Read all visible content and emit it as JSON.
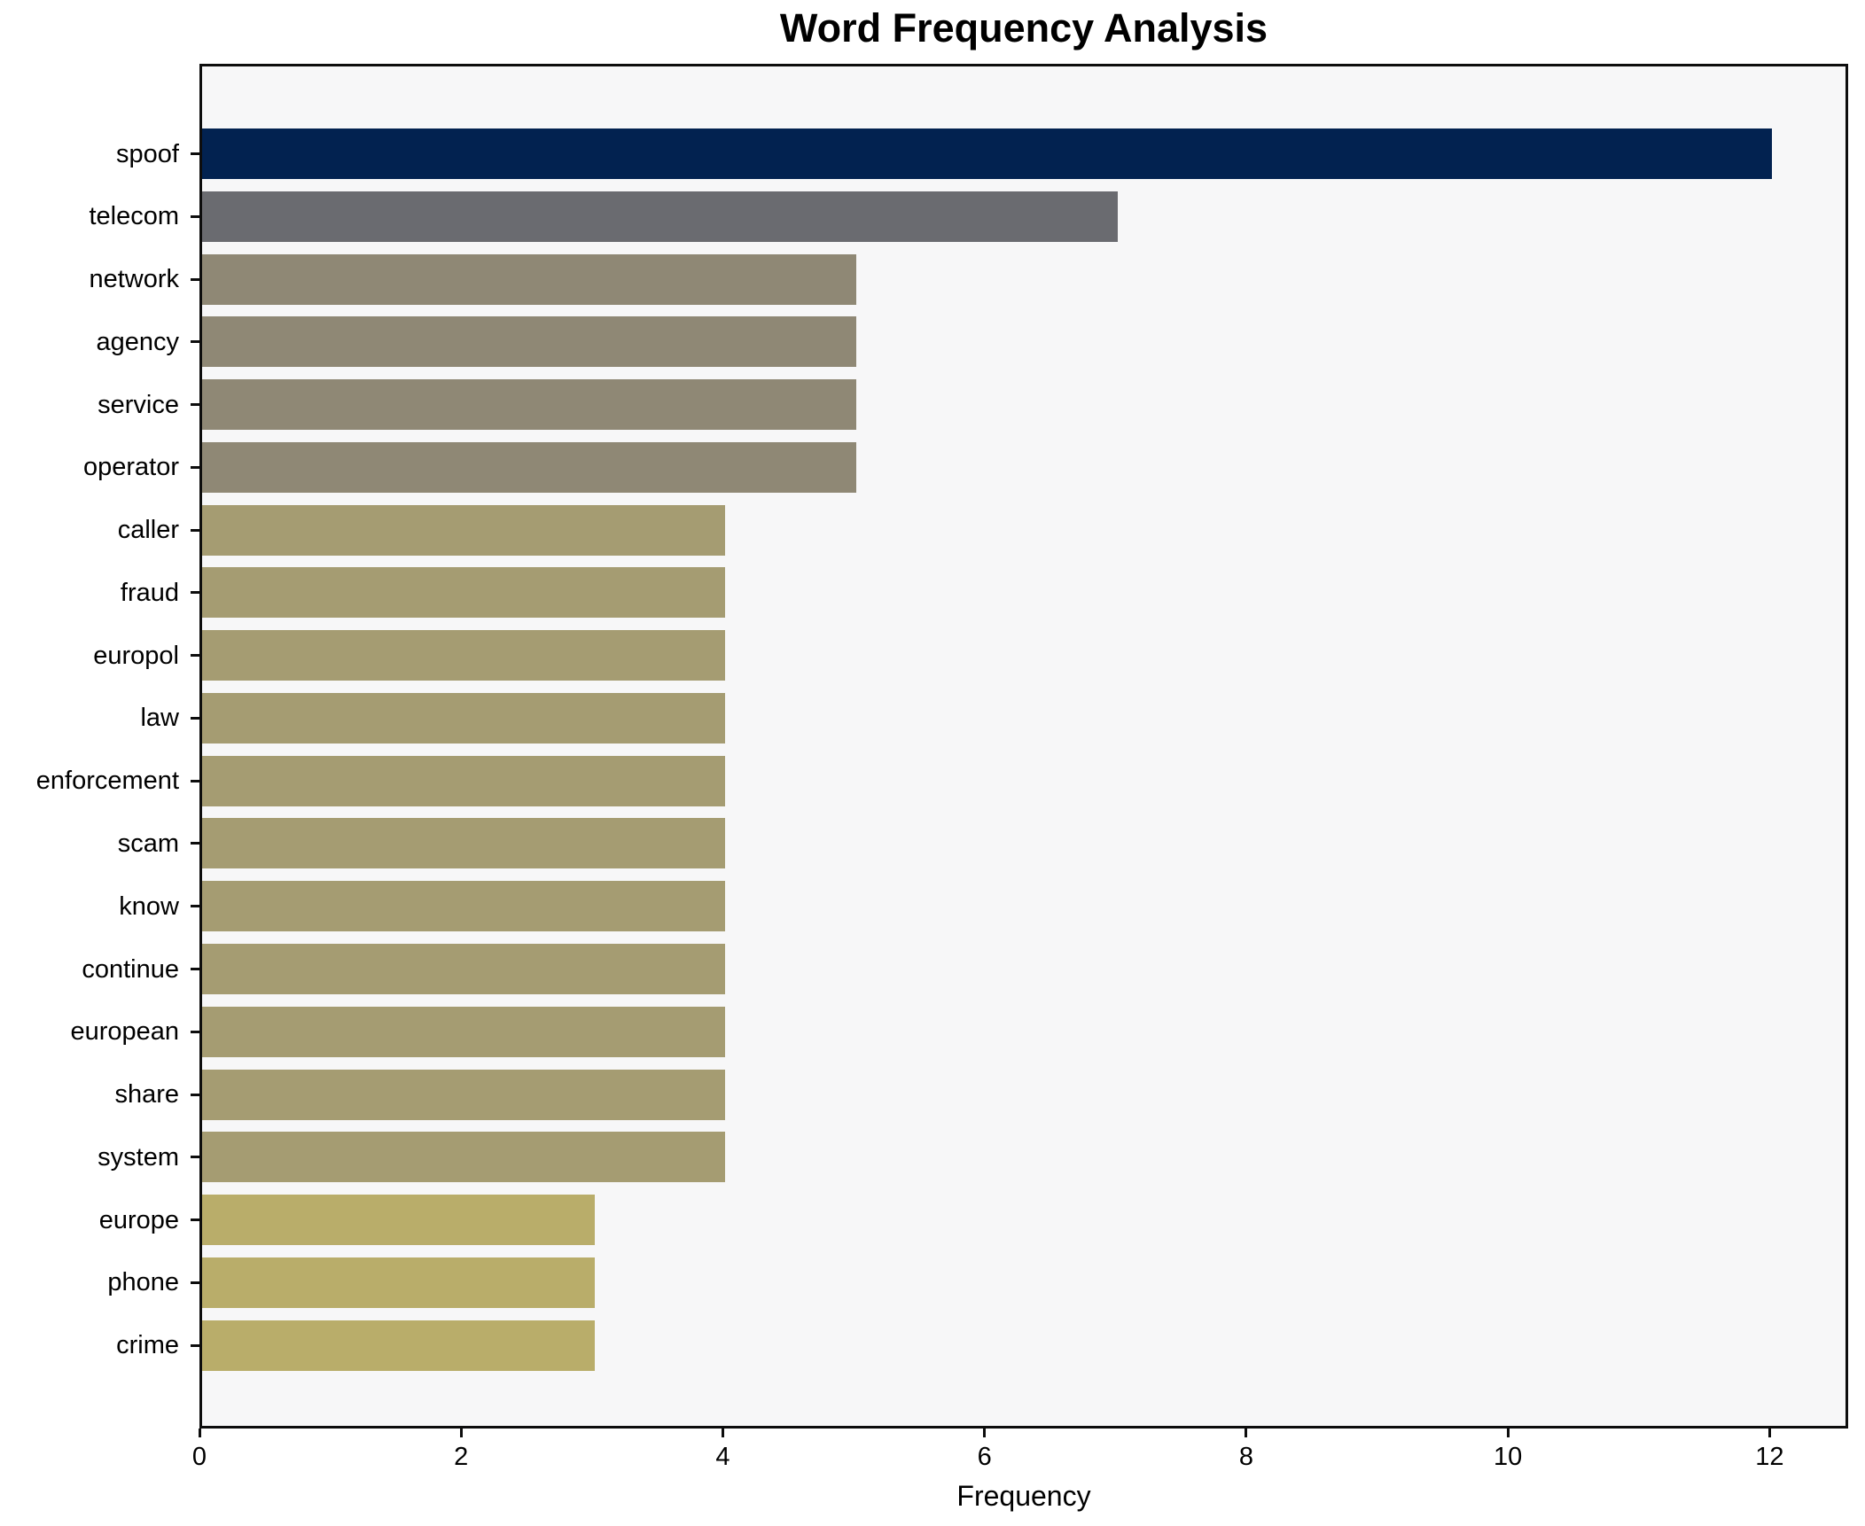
{
  "chart_data": {
    "type": "bar",
    "orientation": "horizontal",
    "title": "Word Frequency Analysis",
    "xlabel": "Frequency",
    "ylabel": "",
    "categories": [
      "spoof",
      "telecom",
      "network",
      "agency",
      "service",
      "operator",
      "caller",
      "fraud",
      "europol",
      "law",
      "enforcement",
      "scam",
      "know",
      "continue",
      "european",
      "share",
      "system",
      "europe",
      "phone",
      "crime"
    ],
    "values": [
      12,
      7,
      5,
      5,
      5,
      5,
      4,
      4,
      4,
      4,
      4,
      4,
      4,
      4,
      4,
      4,
      4,
      3,
      3,
      3
    ],
    "bar_colors": [
      "#022250",
      "#6a6b70",
      "#8f8875",
      "#8f8875",
      "#8f8875",
      "#8f8875",
      "#a59c72",
      "#a59c72",
      "#a59c72",
      "#a59c72",
      "#a59c72",
      "#a59c72",
      "#a59c72",
      "#a59c72",
      "#a59c72",
      "#a59c72",
      "#a59c72",
      "#b9ad6a",
      "#b9ad6a",
      "#b9ad6a"
    ],
    "xticks": [
      0,
      2,
      4,
      6,
      8,
      10,
      12
    ],
    "xlim": [
      0,
      12.6
    ],
    "grid": false,
    "legend": null,
    "plot_background": "#f7f7f8",
    "figure_background": "#ffffff",
    "spine_color": "#0d0d0d"
  }
}
